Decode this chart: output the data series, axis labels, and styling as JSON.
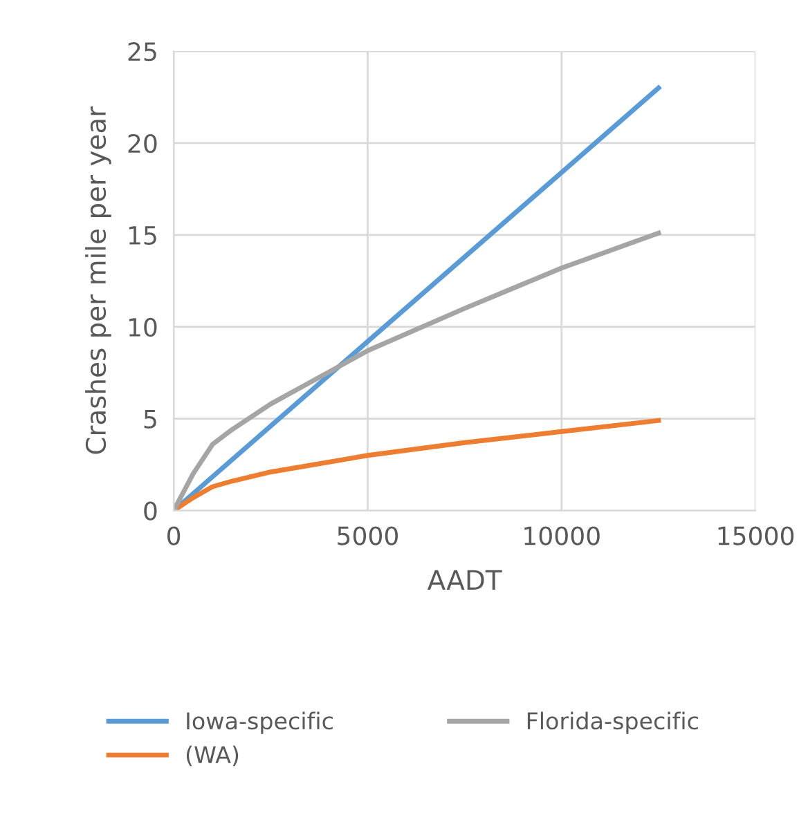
{
  "chart_data": {
    "type": "line",
    "xlabel": "AADT",
    "ylabel": "Crashes per mile per year",
    "xlim": [
      0,
      15000
    ],
    "xticks": [
      0,
      5000,
      10000,
      15000
    ],
    "ylim": [
      0,
      25
    ],
    "yticks": [
      0,
      5,
      10,
      15,
      20,
      25
    ],
    "grid": true,
    "legend": "bottom",
    "marker": "none",
    "line_style": "solid",
    "series": [
      {
        "name": "Iowa-specific",
        "color": "#5b9bd5",
        "x": [
          0,
          12500
        ],
        "values": [
          0,
          23
        ]
      },
      {
        "name": "(WA)",
        "color": "#ed7d31",
        "x": [
          0,
          500,
          1000,
          1500,
          2500,
          5000,
          7500,
          10000,
          12500
        ],
        "values": [
          0,
          0.7,
          1.3,
          1.6,
          2.1,
          3.0,
          3.7,
          4.3,
          4.9
        ]
      },
      {
        "name": "Florida-specific",
        "color": "#a5a5a5",
        "x": [
          0,
          500,
          1000,
          1500,
          2500,
          5000,
          7500,
          10000,
          12500
        ],
        "values": [
          0,
          2.0,
          3.6,
          4.4,
          5.8,
          8.7,
          11.0,
          13.2,
          15.1
        ]
      }
    ]
  }
}
